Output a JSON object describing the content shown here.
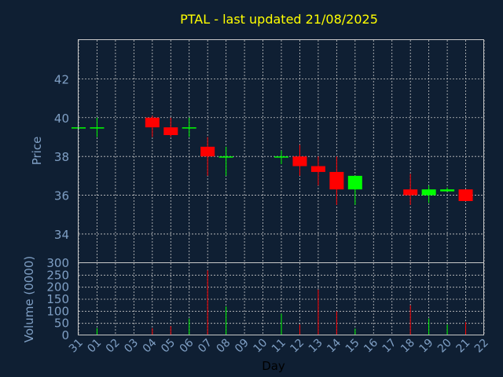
{
  "chart_data": {
    "type": "candlestick",
    "title": "PTAL - last updated 21/08/2025",
    "xlabel": "Day",
    "price_axis": {
      "ylabel": "Price",
      "ylim": [
        32.5,
        44
      ],
      "ticks": [
        34,
        36,
        38,
        40,
        42
      ]
    },
    "volume_axis": {
      "ylabel": "Volume (0000)",
      "ylim": [
        0,
        300
      ],
      "ticks": [
        0,
        50,
        100,
        150,
        200,
        250,
        300
      ]
    },
    "x_ticks": [
      "31",
      "01",
      "02",
      "03",
      "04",
      "05",
      "06",
      "07",
      "08",
      "09",
      "10",
      "11",
      "12",
      "13",
      "14",
      "15",
      "16",
      "17",
      "18",
      "19",
      "20",
      "21",
      "22"
    ],
    "grid": true,
    "colors": {
      "up": "#00ff00",
      "down": "#ff0000",
      "background": "#0f1f33",
      "title": "#ffff00",
      "axis_text": "#7f9fc4"
    },
    "candles": [
      {
        "day": "31",
        "open": 39.5,
        "high": 39.5,
        "low": 39.5,
        "close": 39.5,
        "volume": 0
      },
      {
        "day": "01",
        "open": 39.5,
        "high": 40.0,
        "low": 39.0,
        "close": 39.5,
        "volume": 30
      },
      {
        "day": "04",
        "open": 40.0,
        "high": 40.1,
        "low": 39.0,
        "close": 39.5,
        "volume": 30
      },
      {
        "day": "05",
        "open": 39.5,
        "high": 40.0,
        "low": 39.0,
        "close": 39.1,
        "volume": 38
      },
      {
        "day": "06",
        "open": 39.5,
        "high": 40.0,
        "low": 39.0,
        "close": 39.5,
        "volume": 70
      },
      {
        "day": "07",
        "open": 38.5,
        "high": 39.0,
        "low": 37.0,
        "close": 38.0,
        "volume": 270
      },
      {
        "day": "08",
        "open": 38.0,
        "high": 38.5,
        "low": 37.0,
        "close": 38.0,
        "volume": 120
      },
      {
        "day": "11",
        "open": 38.0,
        "high": 38.3,
        "low": 37.6,
        "close": 38.0,
        "volume": 90
      },
      {
        "day": "12",
        "open": 38.0,
        "high": 38.6,
        "low": 37.0,
        "close": 37.5,
        "volume": 45
      },
      {
        "day": "13",
        "open": 37.5,
        "high": 38.0,
        "low": 36.5,
        "close": 37.2,
        "volume": 190
      },
      {
        "day": "14",
        "open": 37.2,
        "high": 38.0,
        "low": 35.5,
        "close": 36.3,
        "volume": 100
      },
      {
        "day": "15",
        "open": 36.3,
        "high": 37.0,
        "low": 35.5,
        "close": 37.0,
        "volume": 28
      },
      {
        "day": "18",
        "open": 36.3,
        "high": 37.1,
        "low": 35.5,
        "close": 36.0,
        "volume": 125
      },
      {
        "day": "19",
        "open": 36.0,
        "high": 36.5,
        "low": 35.6,
        "close": 36.3,
        "volume": 70
      },
      {
        "day": "20",
        "open": 36.2,
        "high": 36.4,
        "low": 36.2,
        "close": 36.3,
        "volume": 45
      },
      {
        "day": "21",
        "open": 36.3,
        "high": 36.3,
        "low": 35.7,
        "close": 35.7,
        "volume": 55
      }
    ]
  }
}
